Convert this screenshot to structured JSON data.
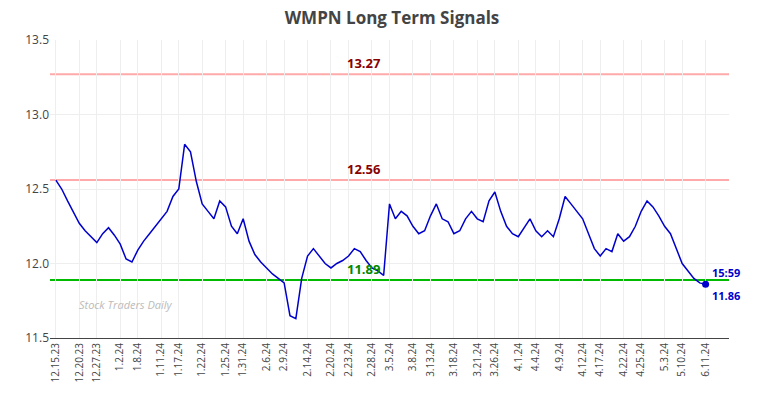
{
  "chart_data": {
    "type": "line",
    "title": "WMPN Long Term Signals",
    "categories": [
      "12.15.23",
      null,
      null,
      null,
      "12.20.23",
      null,
      null,
      "12.27.23",
      null,
      null,
      null,
      "1.2.24",
      null,
      null,
      "1.8.24",
      null,
      null,
      null,
      "1.11.24",
      null,
      null,
      "1.17.24",
      null,
      null,
      null,
      "1.22.24",
      null,
      null,
      null,
      "1.25.24",
      null,
      null,
      "1.31.24",
      null,
      null,
      null,
      "2.6.24",
      null,
      null,
      "2.9.24",
      null,
      null,
      null,
      "2.14.24",
      null,
      null,
      null,
      "2.20.24",
      null,
      null,
      "2.23.24",
      null,
      null,
      null,
      "2.28.24",
      null,
      null,
      "3.5.24",
      null,
      null,
      null,
      "3.8.24",
      null,
      null,
      "3.13.24",
      null,
      null,
      null,
      "3.18.24",
      null,
      null,
      null,
      "3.21.24",
      null,
      null,
      "3.26.24",
      null,
      null,
      null,
      "4.1.24",
      null,
      null,
      "4.4.24",
      null,
      null,
      null,
      "4.9.24",
      null,
      null,
      null,
      "4.12.24",
      null,
      null,
      "4.17.24",
      null,
      null,
      null,
      "4.22.24",
      null,
      null,
      "4.25.24",
      null,
      null,
      null,
      "5.3.24",
      null,
      null,
      "5.10.24",
      null,
      null,
      null,
      "6.11.24"
    ],
    "values": [
      12.56,
      12.5,
      12.42,
      12.35,
      12.27,
      12.22,
      12.18,
      12.14,
      12.2,
      12.24,
      12.19,
      12.13,
      12.03,
      12.01,
      12.09,
      12.15,
      12.2,
      12.25,
      12.3,
      12.35,
      12.45,
      12.5,
      12.8,
      12.75,
      12.55,
      12.4,
      12.35,
      12.3,
      12.42,
      12.38,
      12.25,
      12.2,
      12.3,
      12.15,
      12.06,
      12.01,
      11.97,
      11.93,
      11.9,
      11.87,
      11.65,
      11.63,
      11.9,
      12.05,
      12.1,
      12.05,
      12.0,
      11.97,
      12.0,
      12.02,
      12.05,
      12.1,
      12.08,
      12.02,
      11.97,
      11.95,
      11.92,
      12.4,
      12.3,
      12.35,
      12.32,
      12.25,
      12.2,
      12.22,
      12.32,
      12.4,
      12.3,
      12.28,
      12.2,
      12.22,
      12.3,
      12.35,
      12.3,
      12.28,
      12.42,
      12.48,
      12.35,
      12.25,
      12.2,
      12.18,
      12.24,
      12.3,
      12.22,
      12.18,
      12.22,
      12.18,
      12.3,
      12.45,
      12.4,
      12.35,
      12.3,
      12.2,
      12.1,
      12.05,
      12.1,
      12.08,
      12.2,
      12.15,
      12.18,
      12.25,
      12.35,
      12.42,
      12.38,
      12.32,
      12.25,
      12.2,
      12.1,
      12.0,
      11.95,
      11.9,
      11.87,
      11.86
    ],
    "color": "#0000cc",
    "ylim": [
      11.5,
      13.5
    ],
    "yticks": [
      11.5,
      {
        "value": 12,
        "label": "12.0"
      },
      12.5,
      {
        "value": 13,
        "label": "13.0"
      },
      13.5
    ],
    "grid": true,
    "reference_lines": [
      {
        "value": 13.27,
        "color": "#ffaaaa"
      },
      {
        "value": 12.56,
        "color": "#ffaaaa"
      },
      {
        "value": 11.89,
        "color": "#00bb00"
      }
    ],
    "annotations": [
      {
        "text": "13.27",
        "y": 13.27,
        "color": "#880000"
      },
      {
        "text": "12.56",
        "y": 12.56,
        "color": "#880000"
      },
      {
        "text": "11.89",
        "y": 11.89,
        "color": "#008800"
      }
    ],
    "last_point_labels": [
      "15:59",
      "11.86"
    ],
    "watermark": {
      "text": "Stock Traders Daily",
      "color": "#bbbbbb"
    }
  }
}
